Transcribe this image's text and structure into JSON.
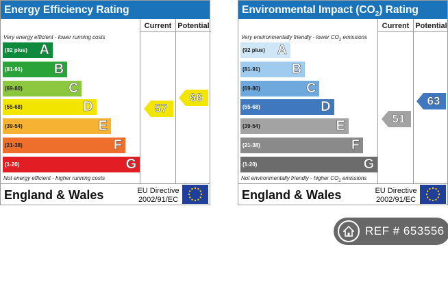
{
  "energy": {
    "title": "Energy Efficiency Rating",
    "col_current": "Current",
    "col_potential": "Potential",
    "top_note": "Very energy efficient - lower running costs",
    "bottom_note": "Not energy efficient - higher running costs",
    "bands": [
      {
        "range": "(92 plus)",
        "letter": "A",
        "color": "#0f8a3c",
        "text_color": "#ffffff"
      },
      {
        "range": "(81-91)",
        "letter": "B",
        "color": "#2aa338",
        "text_color": "#ffffff"
      },
      {
        "range": "(69-80)",
        "letter": "C",
        "color": "#8dc63f",
        "text_color": "#222222"
      },
      {
        "range": "(55-68)",
        "letter": "D",
        "color": "#f2e600",
        "text_color": "#222222"
      },
      {
        "range": "(39-54)",
        "letter": "E",
        "color": "#f6b233",
        "text_color": "#222222"
      },
      {
        "range": "(21-38)",
        "letter": "F",
        "color": "#ee6f2c",
        "text_color": "#222222"
      },
      {
        "range": "(1-20)",
        "letter": "G",
        "color": "#e31d24",
        "text_color": "#ffffff"
      }
    ],
    "current": {
      "value": "57",
      "color": "#f2e600"
    },
    "potential": {
      "value": "66",
      "color": "#f2e600"
    },
    "region": "England & Wales",
    "directive": "EU Directive 2002/91/EC"
  },
  "environment": {
    "title_pre": "Environmental Impact (CO",
    "title_sub": "2",
    "title_post": ") Rating",
    "col_current": "Current",
    "col_potential": "Potential",
    "top_note_pre": "Very environmentally friendly - lower CO",
    "top_note_sub": "2",
    "top_note_post": " emissions",
    "bottom_note_pre": "Not environmentally friendly - higher CO",
    "bottom_note_sub": "2",
    "bottom_note_post": " emissions",
    "bands": [
      {
        "range": "(92 plus)",
        "letter": "A",
        "color": "#cfe6f7",
        "text_color": "#222222"
      },
      {
        "range": "(81-91)",
        "letter": "B",
        "color": "#9fcbee",
        "text_color": "#222222"
      },
      {
        "range": "(69-80)",
        "letter": "C",
        "color": "#6ea8dc",
        "text_color": "#222222"
      },
      {
        "range": "(55-68)",
        "letter": "D",
        "color": "#3f78bf",
        "text_color": "#ffffff"
      },
      {
        "range": "(39-54)",
        "letter": "E",
        "color": "#a3a3a3",
        "text_color": "#222222"
      },
      {
        "range": "(21-38)",
        "letter": "F",
        "color": "#8a8a8a",
        "text_color": "#ffffff"
      },
      {
        "range": "(1-20)",
        "letter": "G",
        "color": "#6c6c6c",
        "text_color": "#ffffff"
      }
    ],
    "current": {
      "value": "51",
      "color": "#a3a3a3"
    },
    "potential": {
      "value": "63",
      "color": "#3f78bf"
    },
    "region": "England & Wales",
    "directive": "EU Directive 2002/91/EC"
  },
  "ref_badge": {
    "text": "REF # 653556",
    "icon": "house-icon"
  }
}
